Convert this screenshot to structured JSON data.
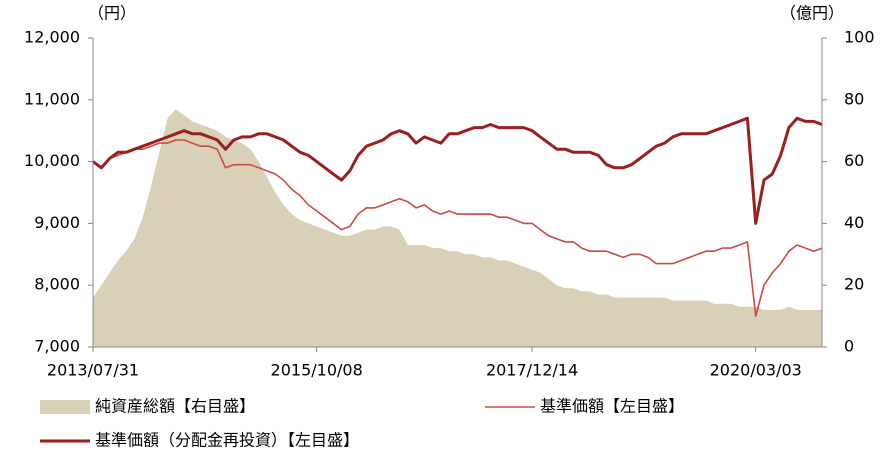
{
  "chart_data": {
    "type": "line",
    "y_unit_label": "（円）",
    "y2_unit_label": "（億円）",
    "categories": [
      "2013/07/31",
      null,
      null,
      null,
      null,
      null,
      null,
      null,
      null,
      null,
      null,
      null,
      null,
      null,
      null,
      null,
      null,
      null,
      null,
      null,
      null,
      null,
      null,
      null,
      null,
      null,
      null,
      "2015/10/08",
      null,
      null,
      null,
      null,
      null,
      null,
      null,
      null,
      null,
      null,
      null,
      null,
      null,
      null,
      null,
      null,
      null,
      null,
      null,
      null,
      null,
      null,
      null,
      null,
      null,
      "2017/12/14",
      null,
      null,
      null,
      null,
      null,
      null,
      null,
      null,
      null,
      null,
      null,
      null,
      null,
      null,
      null,
      null,
      null,
      null,
      null,
      null,
      null,
      null,
      null,
      null,
      null,
      null,
      "2020/03/03",
      null,
      null,
      null,
      null,
      null,
      null,
      null,
      null
    ],
    "ylim": [
      7000,
      12000
    ],
    "yticks": [
      {
        "value": 7000,
        "label": "7,000"
      },
      {
        "value": 8000,
        "label": "8,000"
      },
      {
        "value": 9000,
        "label": "9,000"
      },
      {
        "value": 10000,
        "label": "10,000"
      },
      {
        "value": 11000,
        "label": "11,000"
      },
      {
        "value": 12000,
        "label": "12,000"
      }
    ],
    "y2lim": [
      0,
      100
    ],
    "y2ticks": [
      0,
      20,
      40,
      60,
      80,
      100
    ],
    "series": [
      {
        "name": "純資産総額【右目盛】",
        "kind": "area",
        "axis": "y2",
        "color": "#d8d1b8",
        "values": [
          16,
          20,
          24,
          28,
          31,
          35,
          42,
          52,
          63,
          74,
          77,
          75,
          73,
          72,
          71,
          70,
          68,
          67,
          66,
          64,
          60,
          55,
          50,
          46,
          43,
          41,
          40,
          39,
          38,
          37,
          36,
          36,
          37,
          38,
          38,
          39,
          39,
          38,
          33,
          33,
          33,
          32,
          32,
          31,
          31,
          30,
          30,
          29,
          29,
          28,
          28,
          27,
          26,
          25,
          24,
          22,
          20,
          19,
          19,
          18,
          18,
          17,
          17,
          16,
          16,
          16,
          16,
          16,
          16,
          16,
          15,
          15,
          15,
          15,
          15,
          14,
          14,
          14,
          13,
          13,
          13,
          12,
          12,
          12,
          13,
          12,
          12,
          12,
          12
        ]
      },
      {
        "name": "基準価額【左目盛】",
        "kind": "line",
        "color": "#cc4a40",
        "values": [
          10000,
          9900,
          10050,
          10100,
          10150,
          10200,
          10200,
          10250,
          10300,
          10300,
          10350,
          10350,
          10300,
          10250,
          10250,
          10200,
          9900,
          9950,
          9950,
          9950,
          9900,
          9850,
          9800,
          9700,
          9550,
          9450,
          9300,
          9200,
          9100,
          9000,
          8900,
          8950,
          9150,
          9250,
          9250,
          9300,
          9350,
          9400,
          9350,
          9250,
          9300,
          9200,
          9150,
          9200,
          9150,
          9150,
          9150,
          9150,
          9150,
          9100,
          9100,
          9050,
          9000,
          9000,
          8900,
          8800,
          8750,
          8700,
          8700,
          8600,
          8550,
          8550,
          8550,
          8500,
          8450,
          8500,
          8500,
          8450,
          8350,
          8350,
          8350,
          8400,
          8450,
          8500,
          8550,
          8550,
          8600,
          8600,
          8650,
          8700,
          7500,
          8000,
          8200,
          8350,
          8550,
          8650,
          8600,
          8550,
          8600
        ]
      },
      {
        "name": "基準価額（分配金再投資）【左目盛】",
        "kind": "line",
        "color": "#9a1f1f",
        "values": [
          10000,
          9900,
          10050,
          10150,
          10150,
          10200,
          10250,
          10300,
          10350,
          10400,
          10450,
          10500,
          10450,
          10450,
          10400,
          10350,
          10200,
          10350,
          10400,
          10400,
          10450,
          10450,
          10400,
          10350,
          10250,
          10150,
          10100,
          10000,
          9900,
          9800,
          9700,
          9850,
          10100,
          10250,
          10300,
          10350,
          10450,
          10500,
          10450,
          10300,
          10400,
          10350,
          10300,
          10450,
          10450,
          10500,
          10550,
          10550,
          10600,
          10550,
          10550,
          10550,
          10550,
          10500,
          10400,
          10300,
          10200,
          10200,
          10150,
          10150,
          10150,
          10100,
          9950,
          9900,
          9900,
          9950,
          10050,
          10150,
          10250,
          10300,
          10400,
          10450,
          10450,
          10450,
          10450,
          10500,
          10550,
          10600,
          10650,
          10700,
          9000,
          9700,
          9800,
          10100,
          10550,
          10700,
          10650,
          10650,
          10600
        ]
      }
    ]
  }
}
